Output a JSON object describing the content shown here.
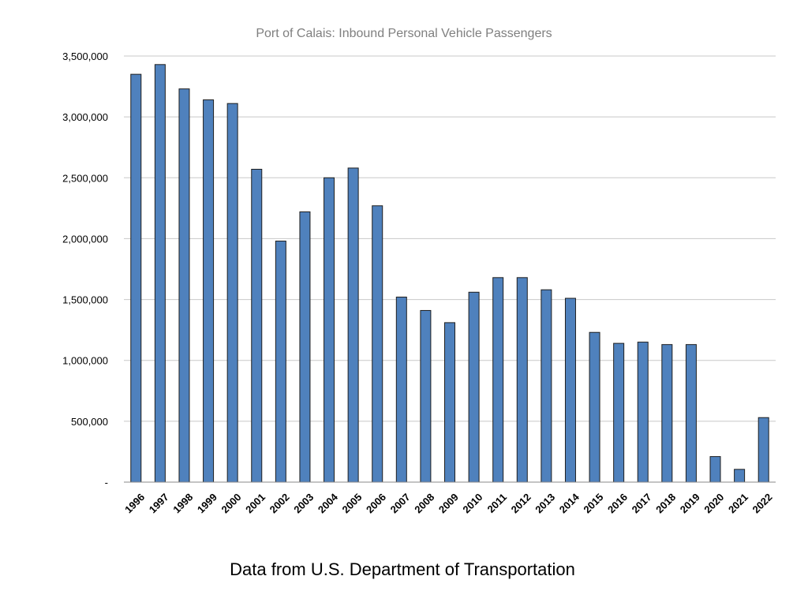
{
  "chart_data": {
    "type": "bar",
    "title": "Port of Calais: Inbound Personal Vehicle Passengers",
    "xlabel": "",
    "ylabel": "",
    "ylim": [
      0,
      3500000
    ],
    "grid": true,
    "bar_color": "#4f81bd",
    "yticks": [
      0,
      500000,
      1000000,
      1500000,
      2000000,
      2500000,
      3000000,
      3500000
    ],
    "ytick_labels": [
      "-",
      "500,000",
      "1,000,000",
      "1,500,000",
      "2,000,000",
      "2,500,000",
      "3,000,000",
      "3,500,000"
    ],
    "categories": [
      "1996",
      "1997",
      "1998",
      "1999",
      "2000",
      "2001",
      "2002",
      "2003",
      "2004",
      "2005",
      "2006",
      "2007",
      "2008",
      "2009",
      "2010",
      "2011",
      "2012",
      "2013",
      "2014",
      "2015",
      "2016",
      "2017",
      "2018",
      "2019",
      "2020",
      "2021",
      "2022"
    ],
    "values": [
      3350000,
      3430000,
      3230000,
      3140000,
      3110000,
      2570000,
      1980000,
      2220000,
      2500000,
      2580000,
      2270000,
      1520000,
      1410000,
      1310000,
      1560000,
      1680000,
      1680000,
      1580000,
      1510000,
      1230000,
      1140000,
      1150000,
      1130000,
      1130000,
      210000,
      105000,
      530000
    ]
  },
  "footer": {
    "source_text": "Data from U.S. Department of Transportation"
  }
}
